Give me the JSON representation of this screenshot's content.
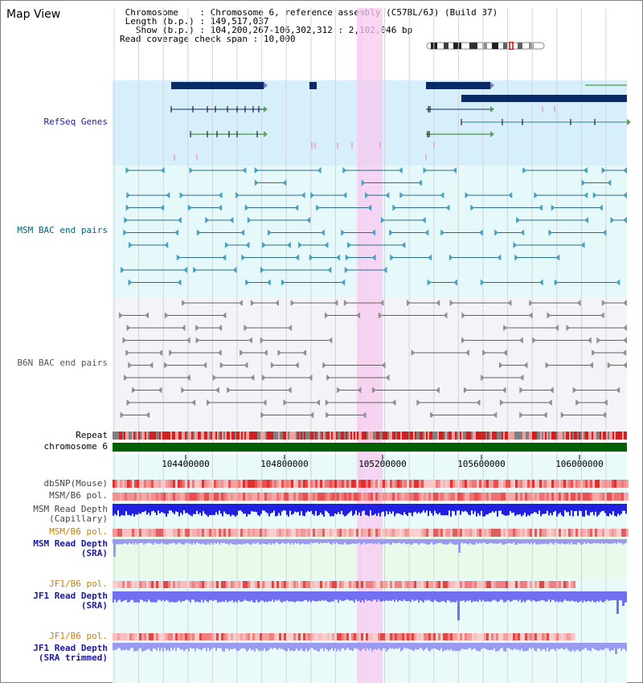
{
  "view_title": "Map View",
  "info": {
    "chromosome_label": "Chromosome",
    "chromosome_value": "Chromosome 6, reference assembly (C57BL/6J) (Build 37)",
    "length_label": "Length (b.p.)",
    "length_value": "149,517,037",
    "show_label": "Show (b.p.)",
    "show_value": "104,200,267-106,302,312 : 2,102,046 bp",
    "span_label": "Read coverage check span",
    "span_value": "10,000"
  },
  "tracks": {
    "refseq": "RefSeq Genes",
    "msm_bac": "MSM BAC end pairs",
    "b6n_bac": "B6N BAC end pairs",
    "repeat": "Repeat",
    "chromosome": "chromosome 6",
    "dbsnp": "dbSNP(Mouse)",
    "msm_b6_pol": "MSM/B6 pol.",
    "msm_depth_cap_1": "MSM Read Depth",
    "msm_depth_cap_2": "(Capillary)",
    "msm_b6_pol_sra": "MSM/B6 pol.",
    "msm_depth_sra_1": "MSM Read Depth",
    "msm_depth_sra_2": "(SRA)",
    "jf1_b6_pol": "JF1/B6 pol.",
    "jf1_depth_sra_1": "JF1 Read Depth",
    "jf1_depth_sra_2": "(SRA)",
    "jf1_b6_pol_2": "JF1/B6 pol.",
    "jf1_depth_trim_1": "JF1 Read Depth",
    "jf1_depth_trim_2": "(SRA trimmed)"
  },
  "axis": {
    "ticks": [
      "104400000",
      "104800000",
      "105200000",
      "105600000",
      "106000000"
    ]
  },
  "colors": {
    "gene": "#0a2a66",
    "msm_label": "#006680",
    "refseq_label": "#1a1aa0",
    "b6n_label": "#555555",
    "orange_label": "#d08000",
    "depth_blue": "#2020e0",
    "highlight": "#f8c8f0"
  }
}
